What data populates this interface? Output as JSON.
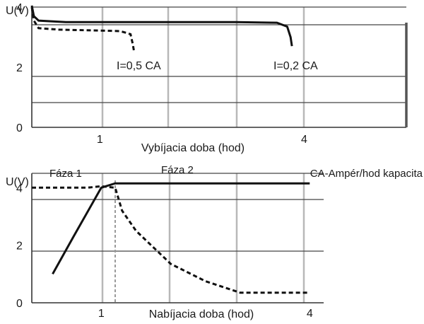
{
  "chart_data": [
    {
      "type": "line",
      "title": "",
      "ylabel": "U(V)",
      "xlabel": "Vybíjacia doba (hod)",
      "xlim": [
        0,
        5.5
      ],
      "ylim": [
        0,
        4
      ],
      "x_ticks": [
        1,
        4
      ],
      "y_ticks": [
        0,
        2,
        4
      ],
      "x_tick_labels": [
        "1",
        "4"
      ],
      "y_tick_labels": [
        "0",
        "2",
        "4"
      ],
      "grid": true,
      "series": [
        {
          "name": "I=0,5 CA",
          "style": "dashed",
          "x": [
            0,
            0.03,
            0.1,
            0.4,
            1.0,
            1.3,
            1.45,
            1.48,
            1.5
          ],
          "y": [
            4.0,
            3.55,
            3.3,
            3.25,
            3.22,
            3.2,
            3.1,
            2.8,
            2.55
          ]
        },
        {
          "name": "I=0,2 CA",
          "style": "solid",
          "x": [
            0,
            0.03,
            0.1,
            0.5,
            1.5,
            3.0,
            3.6,
            3.75,
            3.8,
            3.82
          ],
          "y": [
            4.05,
            3.7,
            3.55,
            3.5,
            3.5,
            3.5,
            3.48,
            3.35,
            3.0,
            2.7
          ]
        }
      ]
    },
    {
      "type": "line",
      "title": "",
      "ylabel": "U(V)",
      "xlabel": "Nabíjacia doba (hod)",
      "xlim": [
        0,
        4.2
      ],
      "ylim": [
        0,
        4.5
      ],
      "x_ticks": [
        1,
        4
      ],
      "y_ticks": [
        0,
        2,
        4
      ],
      "x_tick_labels": [
        "1",
        "4"
      ],
      "y_tick_labels": [
        "0",
        "2",
        "4"
      ],
      "grid": true,
      "phase_boundary_x": 1.2,
      "annotations": [
        "Fáza 1",
        "Fáza 2",
        "CA-Ampér/hod kapacita"
      ],
      "series": [
        {
          "name": "",
          "style": "solid",
          "x": [
            0.3,
            0.6,
            1.0,
            1.2,
            4.0
          ],
          "y": [
            1.0,
            2.3,
            4.0,
            4.15,
            4.15
          ]
        },
        {
          "name": "",
          "style": "dashed",
          "x": [
            0,
            0.8,
            1.0,
            1.2,
            1.3,
            1.5,
            2.0,
            2.5,
            3.0,
            3.5,
            4.0
          ],
          "y": [
            4.0,
            4.0,
            4.05,
            4.0,
            3.2,
            2.5,
            1.35,
            0.75,
            0.35,
            0.35,
            0.35
          ]
        }
      ]
    }
  ]
}
